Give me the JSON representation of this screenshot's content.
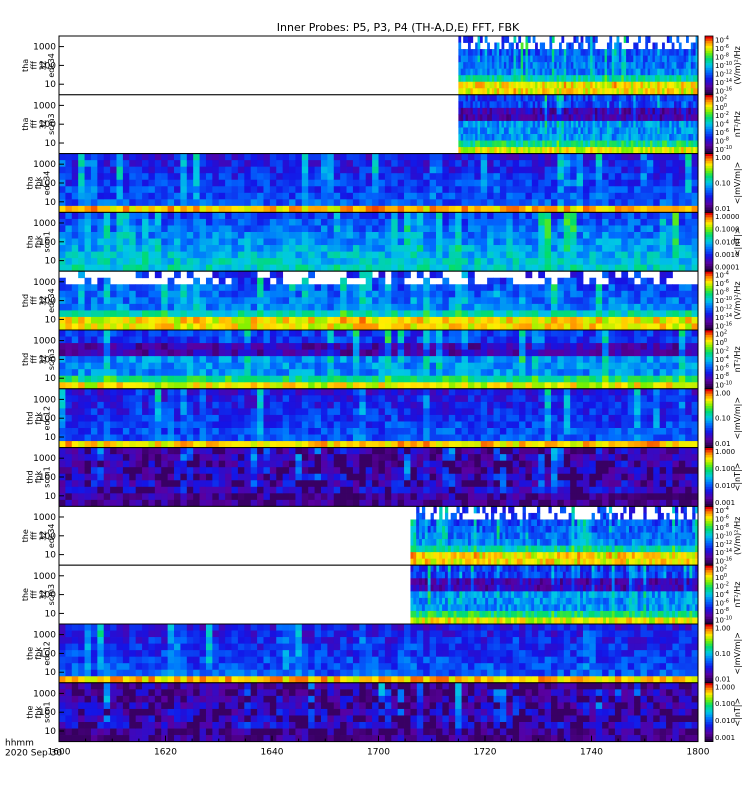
{
  "chart_data": {
    "type": "heatmap",
    "title": "Inner Probes: P5, P3, P4 (TH-A,D,E) FFT, FBK",
    "x_axis": {
      "range": [
        1600,
        1800
      ],
      "tick_labels": [
        "1600",
        "1620",
        "1640",
        "1700",
        "1720",
        "1740",
        "1800"
      ],
      "label_lines": [
        "hhmm",
        "2020 Sep 30"
      ]
    },
    "panels": [
      {
        "label_lines": [
          "tha",
          "fff",
          "32",
          "edc34"
        ],
        "y_ticks": [
          "1000",
          "100",
          "10"
        ],
        "cb_unit": "(V/m)²/Hz",
        "cb_ticks": [
          {
            "m": "10",
            "e": "-4"
          },
          {
            "m": "10",
            "e": "-6"
          },
          {
            "m": "10",
            "e": "-8"
          },
          {
            "m": "10",
            "e": "-10"
          },
          {
            "m": "10",
            "e": "-12"
          },
          {
            "m": "10",
            "e": "-14"
          },
          {
            "m": "10",
            "e": "-16"
          }
        ],
        "data_start_hhmm": 1715,
        "palette": "fff_e"
      },
      {
        "label_lines": [
          "tha",
          "fff",
          "32",
          "scm3"
        ],
        "y_ticks": [
          "1000",
          "100",
          "10"
        ],
        "cb_unit": "nT²/Hz",
        "cb_ticks": [
          {
            "m": "10",
            "e": "2"
          },
          {
            "m": "10",
            "e": "0"
          },
          {
            "m": "10",
            "e": "-2"
          },
          {
            "m": "10",
            "e": "-4"
          },
          {
            "m": "10",
            "e": "-6"
          },
          {
            "m": "10",
            "e": "-8"
          },
          {
            "m": "10",
            "e": "-10"
          }
        ],
        "data_start_hhmm": 1715,
        "palette": "fff_b"
      },
      {
        "label_lines": [
          "tha",
          "fbk",
          "edc34"
        ],
        "y_ticks": [
          "1000",
          "100",
          "10"
        ],
        "cb_unit": "<|mV/m|>",
        "cb_ticks": [
          {
            "m": "1.00"
          },
          {
            "m": "0.10"
          },
          {
            "m": "0.01"
          }
        ],
        "data_start_hhmm": 1600,
        "palette": "fbk_e"
      },
      {
        "label_lines": [
          "tha",
          "fbk",
          "scm1"
        ],
        "y_ticks": [
          "1000",
          "100",
          "10"
        ],
        "cb_unit": "<|nT|>",
        "cb_ticks": [
          {
            "m": "1.0000"
          },
          {
            "m": "0.1000"
          },
          {
            "m": "0.0100"
          },
          {
            "m": "0.0010"
          },
          {
            "m": "0.0001"
          }
        ],
        "data_start_hhmm": 1600,
        "palette": "fbk_b"
      },
      {
        "label_lines": [
          "thd",
          "fff",
          "32",
          "edc34"
        ],
        "y_ticks": [
          "1000",
          "100",
          "10"
        ],
        "cb_unit": "(V/m)²/Hz",
        "cb_ticks": [
          {
            "m": "10",
            "e": "-4"
          },
          {
            "m": "10",
            "e": "-6"
          },
          {
            "m": "10",
            "e": "-8"
          },
          {
            "m": "10",
            "e": "-10"
          },
          {
            "m": "10",
            "e": "-12"
          },
          {
            "m": "10",
            "e": "-14"
          },
          {
            "m": "10",
            "e": "-16"
          }
        ],
        "data_start_hhmm": 1600,
        "palette": "fff_e"
      },
      {
        "label_lines": [
          "thd",
          "fff",
          "32",
          "scm3"
        ],
        "y_ticks": [
          "1000",
          "100",
          "10"
        ],
        "cb_unit": "nT²/Hz",
        "cb_ticks": [
          {
            "m": "10",
            "e": "2"
          },
          {
            "m": "10",
            "e": "0"
          },
          {
            "m": "10",
            "e": "-2"
          },
          {
            "m": "10",
            "e": "-4"
          },
          {
            "m": "10",
            "e": "-6"
          },
          {
            "m": "10",
            "e": "-8"
          },
          {
            "m": "10",
            "e": "-10"
          }
        ],
        "data_start_hhmm": 1600,
        "palette": "fff_b"
      },
      {
        "label_lines": [
          "thd",
          "fbk",
          "edc12"
        ],
        "y_ticks": [
          "1000",
          "100",
          "10"
        ],
        "cb_unit": "<|mV/m|>",
        "cb_ticks": [
          {
            "m": "1.00"
          },
          {
            "m": "0.10"
          },
          {
            "m": "0.01"
          }
        ],
        "data_start_hhmm": 1600,
        "palette": "fbk_e"
      },
      {
        "label_lines": [
          "thd",
          "fbk",
          "scm1"
        ],
        "y_ticks": [
          "1000",
          "100",
          "10"
        ],
        "cb_unit": "<|nT|>",
        "cb_ticks": [
          {
            "m": "1.000"
          },
          {
            "m": "0.100"
          },
          {
            "m": "0.010"
          },
          {
            "m": "0.001"
          }
        ],
        "data_start_hhmm": 1600,
        "palette": "fbk_b2"
      },
      {
        "label_lines": [
          "the",
          "fff",
          "32",
          "edc34"
        ],
        "y_ticks": [
          "1000",
          "100",
          "10"
        ],
        "cb_unit": "(V/m)²/Hz",
        "cb_ticks": [
          {
            "m": "10",
            "e": "-4"
          },
          {
            "m": "10",
            "e": "-6"
          },
          {
            "m": "10",
            "e": "-8"
          },
          {
            "m": "10",
            "e": "-10"
          },
          {
            "m": "10",
            "e": "-12"
          },
          {
            "m": "10",
            "e": "-14"
          },
          {
            "m": "10",
            "e": "-16"
          }
        ],
        "data_start_hhmm": 1706,
        "palette": "fff_e"
      },
      {
        "label_lines": [
          "the",
          "fff",
          "32",
          "scm3"
        ],
        "y_ticks": [
          "1000",
          "100",
          "10"
        ],
        "cb_unit": "nT²/Hz",
        "cb_ticks": [
          {
            "m": "10",
            "e": "2"
          },
          {
            "m": "10",
            "e": "0"
          },
          {
            "m": "10",
            "e": "-2"
          },
          {
            "m": "10",
            "e": "-4"
          },
          {
            "m": "10",
            "e": "-6"
          },
          {
            "m": "10",
            "e": "-8"
          },
          {
            "m": "10",
            "e": "-10"
          }
        ],
        "data_start_hhmm": 1706,
        "palette": "fff_b"
      },
      {
        "label_lines": [
          "the",
          "fbk",
          "edc12"
        ],
        "y_ticks": [
          "1000",
          "100",
          "10"
        ],
        "cb_unit": "<|mV/m|>",
        "cb_ticks": [
          {
            "m": "1.00"
          },
          {
            "m": "0.10"
          },
          {
            "m": "0.01"
          }
        ],
        "data_start_hhmm": 1600,
        "palette": "fbk_e"
      },
      {
        "label_lines": [
          "the",
          "fbk",
          "scm1"
        ],
        "y_ticks": [
          "1000",
          "100",
          "10"
        ],
        "cb_unit": "<|nT|>",
        "cb_ticks": [
          {
            "m": "1.000"
          },
          {
            "m": "0.100"
          },
          {
            "m": "0.010"
          },
          {
            "m": "0.001"
          }
        ],
        "data_start_hhmm": 1600,
        "palette": "fbk_b2"
      }
    ],
    "colorbar": "rainbow (purple to red)",
    "grid": false,
    "legend": "colorbars right of each panel"
  }
}
